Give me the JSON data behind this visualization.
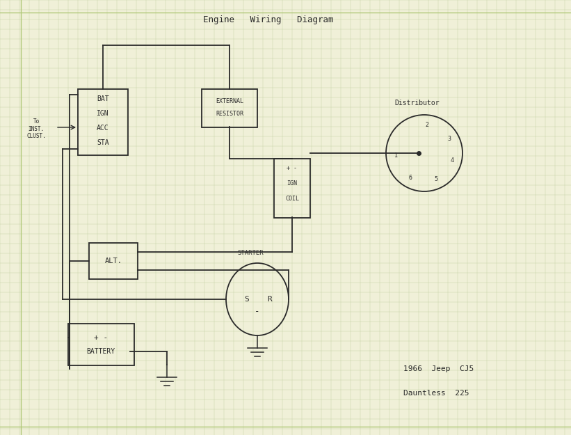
{
  "bg_color": "#f0f0d8",
  "grid_color": "#c8d4a8",
  "line_color": "#2a2a2a",
  "title": "Engine   Wiring   Diagram",
  "subtitle1": "1966  Jeep  CJ5",
  "subtitle2": "Dauntless  225",
  "ignition_switch_label": [
    "BAT",
    "IGN",
    "ACC",
    "STA"
  ],
  "ext_resistor_label": [
    "EXTERNAL",
    "RESISTOR"
  ],
  "coil_label": [
    "+ -",
    "IGN",
    "COIL"
  ],
  "distributor_label": "Distributor",
  "alt_label": "ALT.",
  "starter_label": "STARTER",
  "battery_label_top": "+ -",
  "battery_label_bot": "BATTERY"
}
